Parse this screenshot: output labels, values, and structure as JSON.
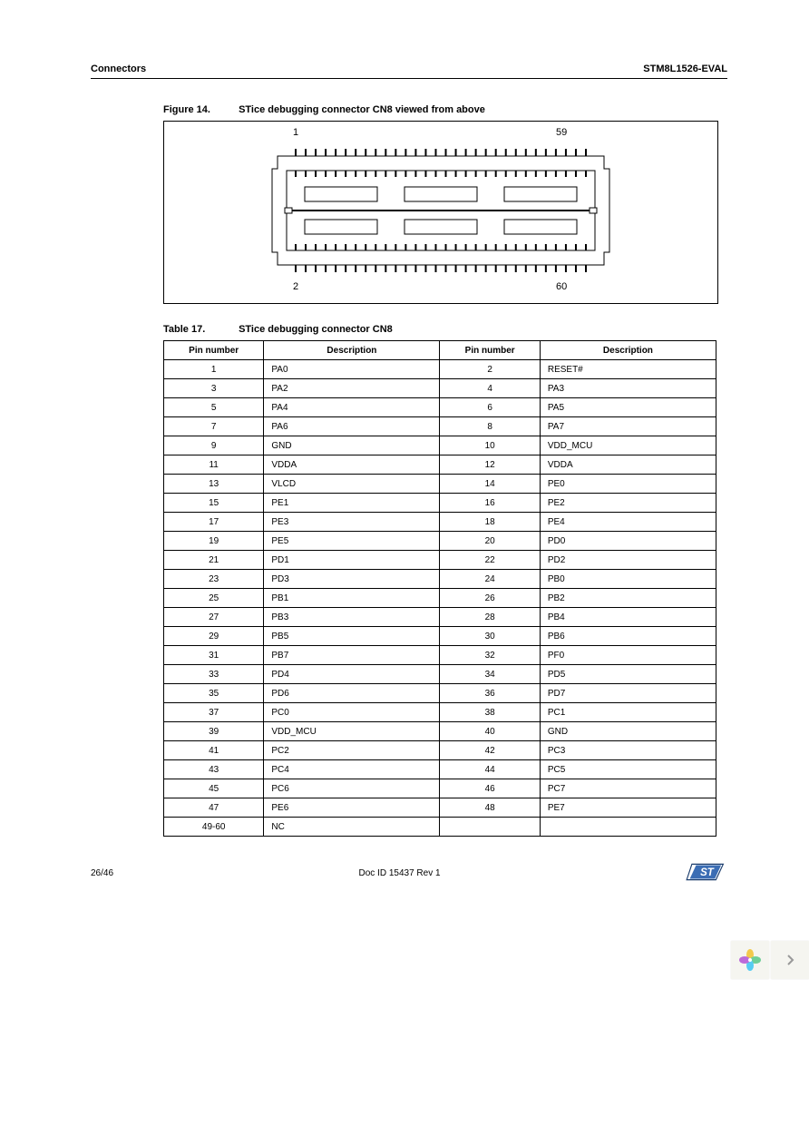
{
  "header": {
    "left": "Connectors",
    "right": "STM8L1526-EVAL"
  },
  "figure": {
    "number": "Figure 14.",
    "title": "STice debugging connector CN8 viewed from above",
    "pin_labels": {
      "top_left": "1",
      "top_right": "59",
      "bottom_left": "2",
      "bottom_right": "60"
    },
    "pins_per_row": 30,
    "colors": {
      "body": "#ffffff",
      "stroke": "#000000",
      "inner_fill": "#ffffff"
    }
  },
  "table": {
    "number": "Table 17.",
    "title": "STice debugging connector CN8",
    "columns": [
      "Pin number",
      "Description",
      "Pin number",
      "Description"
    ],
    "rows": [
      [
        "1",
        "PA0",
        "2",
        "RESET#"
      ],
      [
        "3",
        "PA2",
        "4",
        "PA3"
      ],
      [
        "5",
        "PA4",
        "6",
        "PA5"
      ],
      [
        "7",
        "PA6",
        "8",
        "PA7"
      ],
      [
        "9",
        "GND",
        "10",
        "VDD_MCU"
      ],
      [
        "11",
        "VDDA",
        "12",
        "VDDA"
      ],
      [
        "13",
        "VLCD",
        "14",
        "PE0"
      ],
      [
        "15",
        "PE1",
        "16",
        "PE2"
      ],
      [
        "17",
        "PE3",
        "18",
        "PE4"
      ],
      [
        "19",
        "PE5",
        "20",
        "PD0"
      ],
      [
        "21",
        "PD1",
        "22",
        "PD2"
      ],
      [
        "23",
        "PD3",
        "24",
        "PB0"
      ],
      [
        "25",
        "PB1",
        "26",
        "PB2"
      ],
      [
        "27",
        "PB3",
        "28",
        "PB4"
      ],
      [
        "29",
        "PB5",
        "30",
        "PB6"
      ],
      [
        "31",
        "PB7",
        "32",
        "PF0"
      ],
      [
        "33",
        "PD4",
        "34",
        "PD5"
      ],
      [
        "35",
        "PD6",
        "36",
        "PD7"
      ],
      [
        "37",
        "PC0",
        "38",
        "PC1"
      ],
      [
        "39",
        "VDD_MCU",
        "40",
        "GND"
      ],
      [
        "41",
        "PC2",
        "42",
        "PC3"
      ],
      [
        "43",
        "PC4",
        "44",
        "PC5"
      ],
      [
        "45",
        "PC6",
        "46",
        "PC7"
      ],
      [
        "47",
        "PE6",
        "48",
        "PE7"
      ],
      [
        "49-60",
        "NC",
        "",
        ""
      ]
    ]
  },
  "footer": {
    "page": "26/46",
    "docid": "Doc ID 15437 Rev 1"
  },
  "logo_colors": {
    "bg": "#ffffff",
    "stroke": "#1b3d6d",
    "fill": "#3b6db4"
  },
  "widget_petal_colors": [
    "#f2c94c",
    "#6fcf97",
    "#56ccf2",
    "#bb6bd9"
  ]
}
